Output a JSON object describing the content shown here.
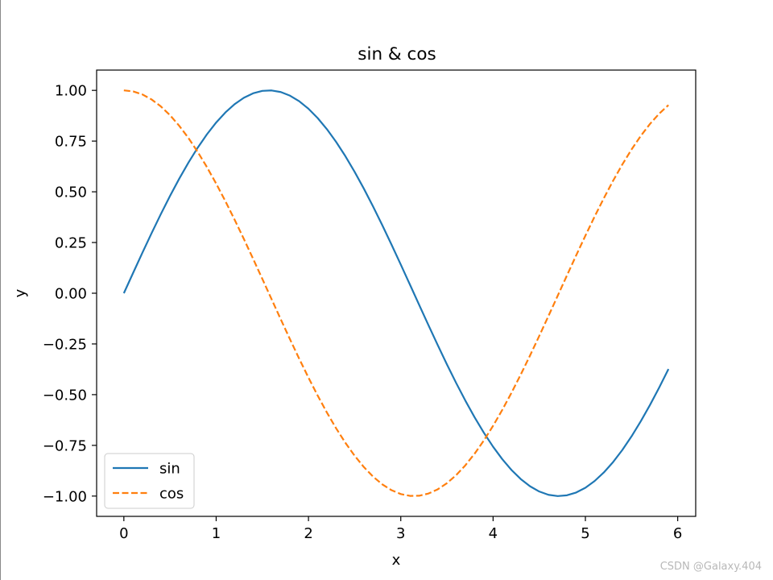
{
  "chart_data": {
    "type": "line",
    "title": "sin & cos",
    "xlabel": "x",
    "ylabel": "y",
    "xlim": [
      -0.295,
      6.195
    ],
    "ylim": [
      -1.1,
      1.1
    ],
    "xticks": [
      0,
      1,
      2,
      3,
      4,
      5,
      6
    ],
    "xtick_labels": [
      "0",
      "1",
      "2",
      "3",
      "4",
      "5",
      "6"
    ],
    "yticks": [
      1.0,
      0.75,
      0.5,
      0.25,
      0.0,
      -0.25,
      -0.5,
      -0.75,
      -1.0
    ],
    "ytick_labels": [
      "1.00",
      "0.75",
      "0.50",
      "0.25",
      "0.00",
      "−0.25",
      "−0.50",
      "−0.75",
      "−1.00"
    ],
    "grid": false,
    "legend": "lower-left",
    "x": [
      0.0,
      0.1,
      0.2,
      0.3,
      0.4,
      0.5,
      0.6,
      0.7,
      0.8,
      0.9,
      1.0,
      1.1,
      1.2,
      1.3,
      1.4,
      1.5,
      1.6,
      1.7,
      1.8,
      1.9,
      2.0,
      2.1,
      2.2,
      2.3,
      2.4,
      2.5,
      2.6,
      2.7,
      2.8,
      2.9,
      3.0,
      3.1,
      3.2,
      3.3,
      3.4,
      3.5,
      3.6,
      3.7,
      3.8,
      3.9,
      4.0,
      4.1,
      4.2,
      4.3,
      4.4,
      4.5,
      4.6,
      4.7,
      4.8,
      4.9,
      5.0,
      5.1,
      5.2,
      5.3,
      5.4,
      5.5,
      5.6,
      5.7,
      5.8,
      5.9
    ],
    "series": [
      {
        "name": "sin",
        "color": "#1f77b4",
        "style": "solid",
        "values": [
          0.0,
          0.0998,
          0.1987,
          0.2955,
          0.3894,
          0.4794,
          0.5646,
          0.6442,
          0.7174,
          0.7833,
          0.8415,
          0.8912,
          0.932,
          0.9636,
          0.9854,
          0.9975,
          0.9996,
          0.9917,
          0.9738,
          0.9463,
          0.9093,
          0.8632,
          0.8085,
          0.7457,
          0.6755,
          0.5985,
          0.5155,
          0.4274,
          0.335,
          0.2392,
          0.1411,
          0.0416,
          -0.0584,
          -0.1577,
          -0.2555,
          -0.3508,
          -0.4425,
          -0.5298,
          -0.6119,
          -0.6878,
          -0.7568,
          -0.8183,
          -0.8716,
          -0.9162,
          -0.9516,
          -0.9775,
          -0.9937,
          -0.9999,
          -0.9962,
          -0.9825,
          -0.9589,
          -0.9258,
          -0.8835,
          -0.8323,
          -0.7728,
          -0.7055,
          -0.6313,
          -0.5507,
          -0.4646,
          -0.3739
        ]
      },
      {
        "name": "cos",
        "color": "#ff7f0e",
        "style": "dashed",
        "values": [
          1.0,
          0.995,
          0.9801,
          0.9553,
          0.9211,
          0.8776,
          0.8253,
          0.7648,
          0.6967,
          0.6216,
          0.5403,
          0.4536,
          0.3624,
          0.2675,
          0.17,
          0.0707,
          -0.0292,
          -0.1288,
          -0.2272,
          -0.3233,
          -0.4161,
          -0.5048,
          -0.5885,
          -0.6663,
          -0.7374,
          -0.8011,
          -0.8569,
          -0.9041,
          -0.9422,
          -0.971,
          -0.99,
          -0.9991,
          -0.9983,
          -0.9875,
          -0.9668,
          -0.9365,
          -0.8968,
          -0.8481,
          -0.791,
          -0.7259,
          -0.6536,
          -0.5748,
          -0.4903,
          -0.4008,
          -0.3073,
          -0.2108,
          -0.1122,
          -0.0124,
          0.0875,
          0.1865,
          0.2837,
          0.378,
          0.4685,
          0.5544,
          0.6347,
          0.7087,
          0.7756,
          0.8347,
          0.8855,
          0.9275
        ]
      }
    ]
  },
  "watermark": "CSDN @Galaxy.404"
}
